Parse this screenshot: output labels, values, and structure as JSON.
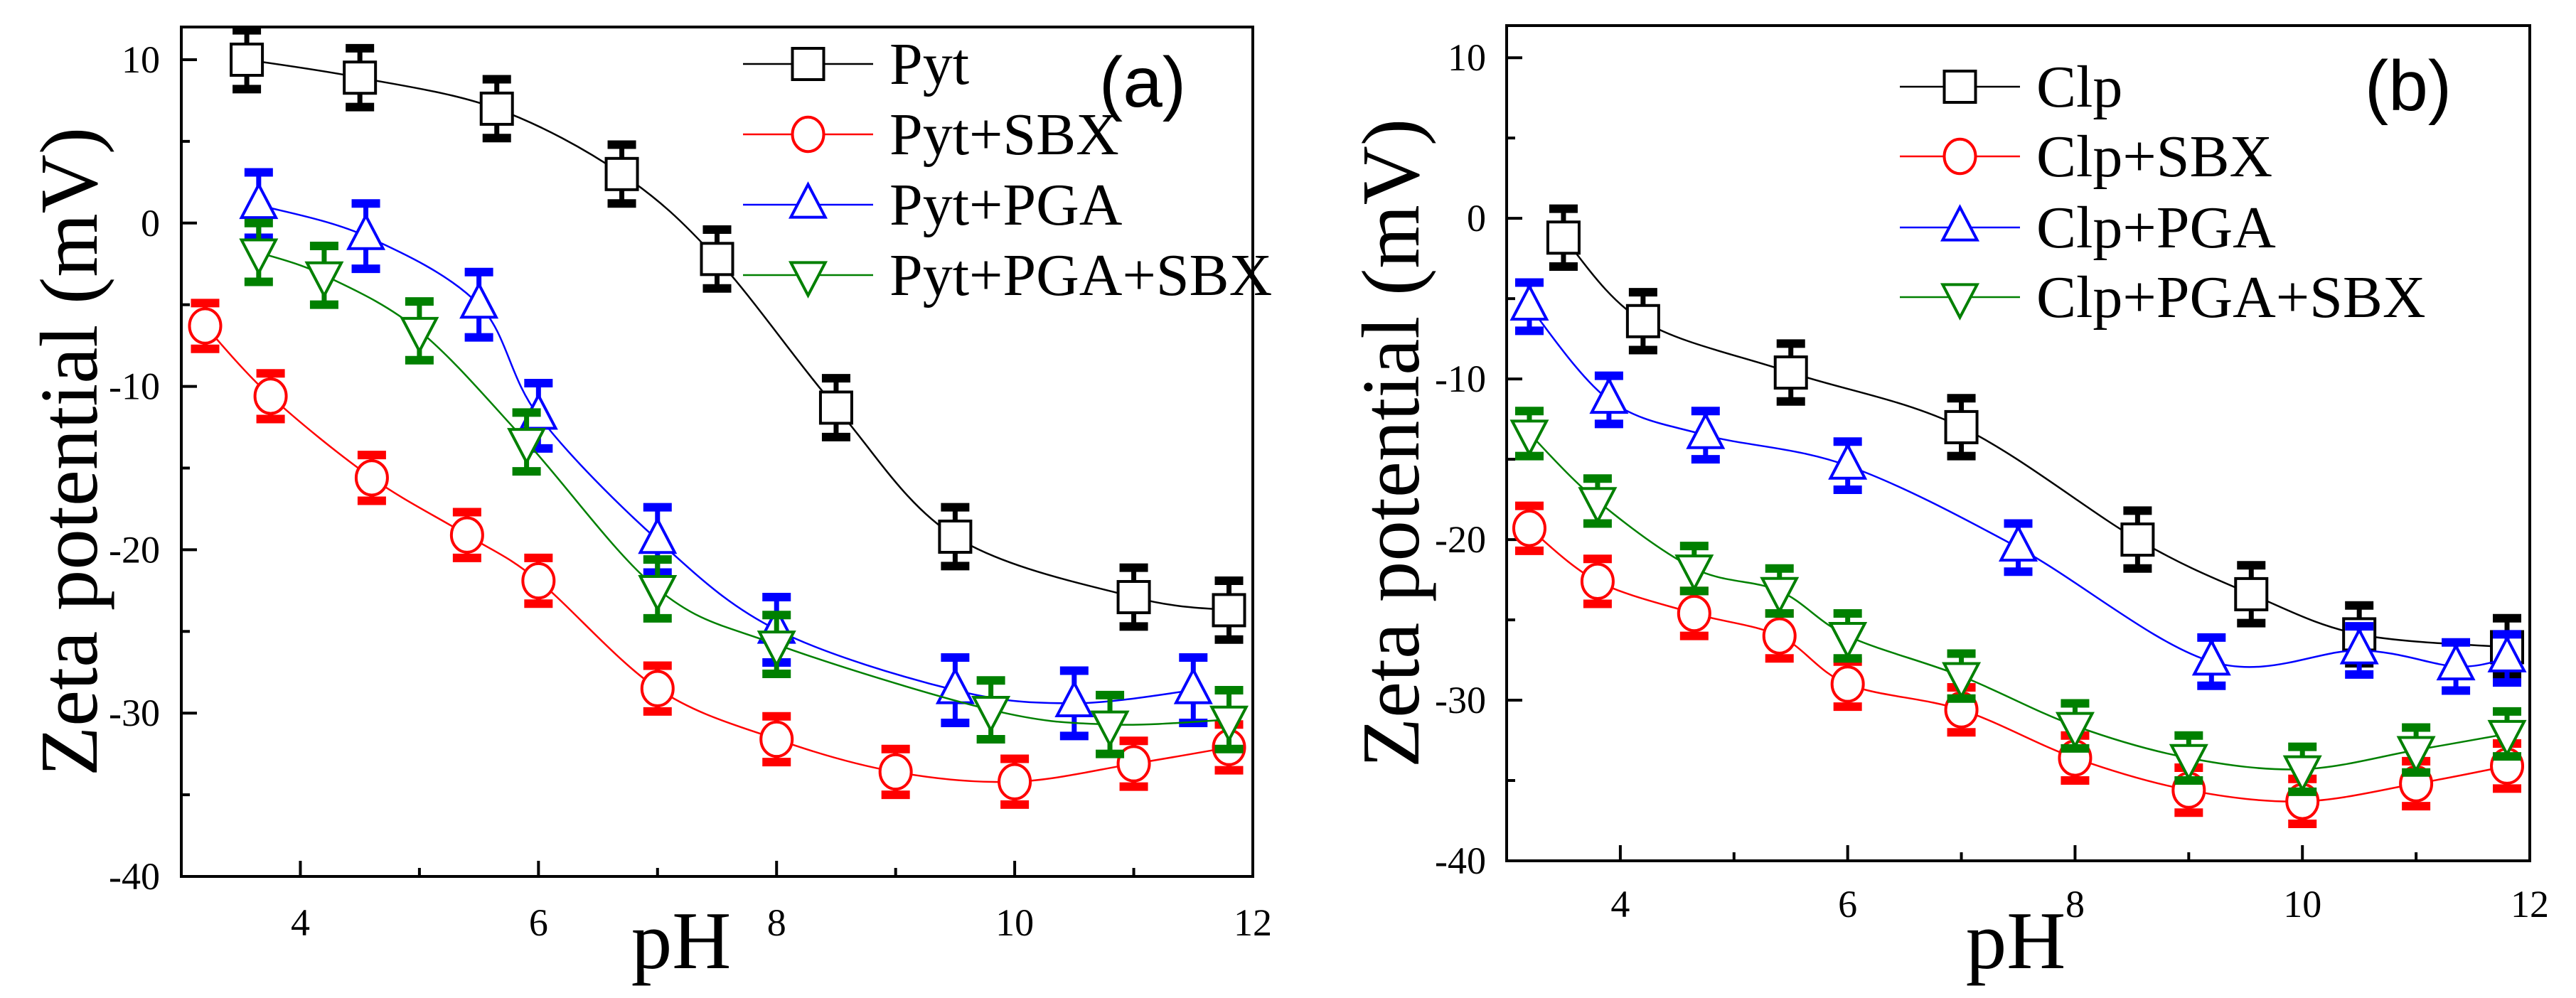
{
  "chart_data": [
    {
      "type": "line",
      "panel_label": "(a)",
      "xlabel": "pH",
      "ylabel": "Zeta potential (mV)",
      "xlim": [
        3,
        12
      ],
      "ylim": [
        -40,
        12
      ],
      "xticks": [
        4,
        6,
        8,
        10,
        12
      ],
      "yticks": [
        -40,
        -30,
        -20,
        -10,
        0,
        10
      ],
      "legend_position": "top-right",
      "series": [
        {
          "name": "Pyt",
          "color": "#000000",
          "marker": "square",
          "error": 1.8,
          "x": [
            3.55,
            4.5,
            5.65,
            6.7,
            7.5,
            8.5,
            9.5,
            11.0,
            11.8
          ],
          "y": [
            10.0,
            8.9,
            7.0,
            3.0,
            -2.2,
            -11.3,
            -19.2,
            -22.9,
            -23.7
          ]
        },
        {
          "name": "Pyt+SBX",
          "color": "#ff0000",
          "marker": "circle",
          "error": 1.4,
          "x": [
            3.2,
            3.75,
            4.6,
            5.4,
            6.0,
            7.0,
            8.0,
            9.0,
            10.0,
            11.0,
            11.8
          ],
          "y": [
            -6.3,
            -10.6,
            -15.6,
            -19.1,
            -21.9,
            -28.5,
            -31.6,
            -33.6,
            -34.2,
            -33.1,
            -32.1
          ]
        },
        {
          "name": "Pyt+PGA",
          "color": "#0000ff",
          "marker": "triangle-up",
          "error": 2.0,
          "x": [
            3.65,
            4.55,
            5.5,
            6.0,
            7.0,
            8.0,
            9.5,
            10.5,
            11.5
          ],
          "y": [
            1.1,
            -0.8,
            -5.0,
            -11.8,
            -19.4,
            -24.9,
            -28.6,
            -29.4,
            -28.6
          ]
        },
        {
          "name": "Pyt+PGA+SBX",
          "color": "#008000",
          "marker": "triangle-down",
          "error": 1.8,
          "x": [
            3.65,
            4.2,
            5.0,
            5.9,
            7.0,
            8.0,
            9.8,
            10.8,
            11.8
          ],
          "y": [
            -1.8,
            -3.2,
            -6.6,
            -13.4,
            -22.4,
            -25.8,
            -29.8,
            -30.7,
            -30.4
          ]
        }
      ]
    },
    {
      "type": "line",
      "panel_label": "(b)",
      "xlabel": "pH",
      "ylabel": "Zeta potential (mV)",
      "xlim": [
        3,
        12
      ],
      "ylim": [
        -40,
        12
      ],
      "xticks": [
        4,
        6,
        8,
        10,
        12
      ],
      "yticks": [
        -40,
        -30,
        -20,
        -10,
        0,
        10
      ],
      "legend_position": "top-right",
      "series": [
        {
          "name": "Clp",
          "color": "#000000",
          "marker": "square",
          "error": 1.8,
          "x": [
            3.5,
            4.2,
            5.5,
            7.0,
            8.55,
            9.55,
            10.5,
            11.8
          ],
          "y": [
            -1.2,
            -6.4,
            -9.6,
            -13.0,
            -20.0,
            -23.4,
            -25.9,
            -26.7
          ]
        },
        {
          "name": "Clp+SBX",
          "color": "#ff0000",
          "marker": "circle",
          "error": 1.4,
          "x": [
            3.2,
            3.8,
            4.65,
            5.4,
            6.0,
            7.0,
            8.0,
            9.0,
            10.0,
            11.0,
            11.8
          ],
          "y": [
            -19.3,
            -22.6,
            -24.6,
            -26.0,
            -29.0,
            -30.6,
            -33.6,
            -35.6,
            -36.3,
            -35.2,
            -34.1
          ]
        },
        {
          "name": "Clp+PGA",
          "color": "#0000ff",
          "marker": "triangle-up",
          "error": 1.5,
          "x": [
            3.2,
            3.9,
            4.75,
            6.0,
            7.5,
            9.2,
            10.5,
            11.35,
            11.8
          ],
          "y": [
            -5.5,
            -11.3,
            -13.5,
            -15.4,
            -20.5,
            -27.6,
            -26.9,
            -27.9,
            -27.4
          ]
        },
        {
          "name": "Clp+PGA+SBX",
          "color": "#008000",
          "marker": "triangle-down",
          "error": 1.4,
          "x": [
            3.2,
            3.8,
            4.65,
            5.4,
            6.0,
            7.0,
            8.0,
            9.0,
            10.0,
            11.0,
            11.8
          ],
          "y": [
            -13.4,
            -17.6,
            -21.8,
            -23.2,
            -26.0,
            -28.5,
            -31.6,
            -33.6,
            -34.3,
            -33.1,
            -32.1
          ]
        }
      ]
    }
  ]
}
